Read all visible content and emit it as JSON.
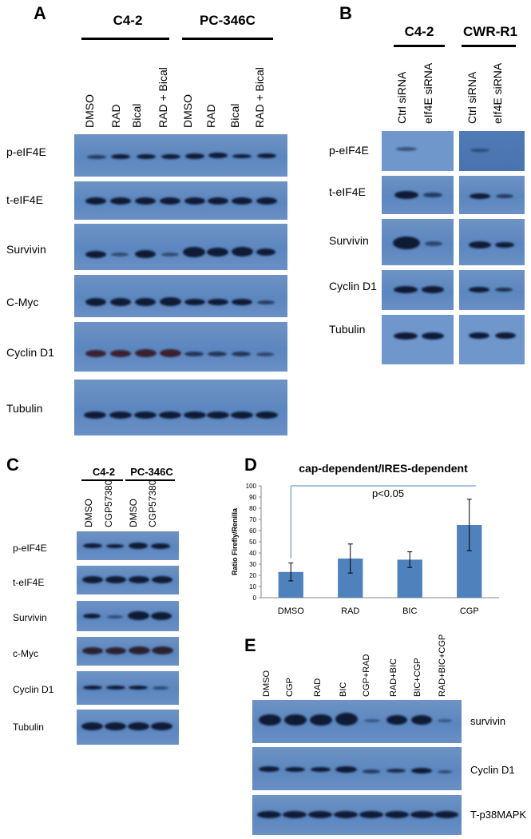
{
  "panels": {
    "A": {
      "letter": "A",
      "groups": [
        "C4-2",
        "PC-346C"
      ],
      "lanes": [
        "DMSO",
        "RAD",
        "Bical",
        "RAD + Bical",
        "DMSO",
        "RAD",
        "Bical",
        "RAD + Bical"
      ],
      "rows": [
        "p-eIF4E",
        "t-eIF4E",
        "Survivin",
        "C-Myc",
        "Cyclin D1",
        "Tubulin"
      ]
    },
    "B": {
      "letter": "B",
      "groups": [
        "C4-2",
        "CWR-R1"
      ],
      "lanes": [
        "Ctrl siRNA",
        "eIf4E siRNA",
        "Ctrl siRNA",
        "eIf4E siRNA"
      ],
      "rows": [
        "p-eIF4E",
        "t-eIF4E",
        "Survivin",
        "Cyclin D1",
        "Tubulin"
      ]
    },
    "C": {
      "letter": "C",
      "groups": [
        "C4-2",
        "PC-346C"
      ],
      "lanes": [
        "DMSO",
        "CGP57380",
        "DMSO",
        "CGP57380"
      ],
      "rows": [
        "p-eIF4E",
        "t-eIF4E",
        "Survivin",
        "c-Myc",
        "Cyclin D1",
        "Tubulin"
      ]
    },
    "D": {
      "letter": "D"
    },
    "E": {
      "letter": "E",
      "lanes": [
        "DMSO",
        "CGP",
        "RAD",
        "BIC",
        "CGP+RAD",
        "RAD+BIC",
        "BIC+CGP",
        "RAD+BIC+CGP"
      ],
      "rows": [
        "survivin",
        "Cyclin D1",
        "T-p38MAPK"
      ]
    }
  },
  "chart_data": {
    "type": "bar",
    "title": "cap-dependent/IRES-dependent",
    "ylabel": "Ratio Firefly/Renilla",
    "xlabel": "",
    "categories": [
      "DMSO",
      "RAD",
      "BIC",
      "CGP"
    ],
    "values": [
      23,
      35,
      34,
      65
    ],
    "errors": [
      8,
      13,
      7,
      23
    ],
    "ylim": [
      0,
      100
    ],
    "yticks": [
      0,
      10,
      20,
      30,
      40,
      50,
      60,
      70,
      80,
      90,
      100
    ],
    "annotation": "p<0.05",
    "bar_color": "#4f81bd",
    "grid": false
  },
  "colors": {
    "blot": "#5b86bf",
    "band": "#0f1a35"
  }
}
